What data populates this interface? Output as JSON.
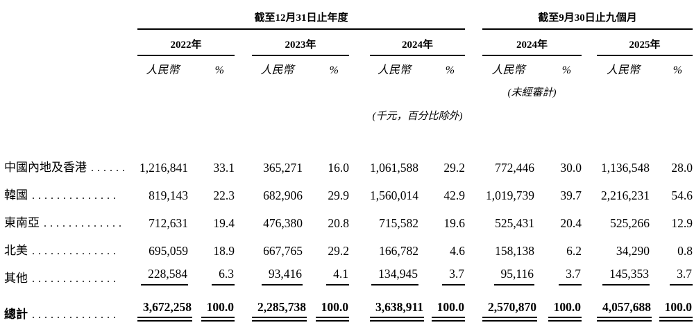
{
  "table": {
    "period_groups": [
      {
        "label": "截至12月31日止年度"
      },
      {
        "label": "截至9月30日止九個月"
      }
    ],
    "years": [
      "2022年",
      "2023年",
      "2024年",
      "2024年",
      "2025年"
    ],
    "sub_amount": "人民幣",
    "sub_percent": "%",
    "notes": {
      "unaudited": "(未經審計)",
      "units": "(千元，百分比除外)"
    },
    "rows": [
      {
        "label": "中國內地及香港",
        "leader": "......",
        "style": "plain",
        "values": [
          "1,216,841",
          "33.1",
          "365,271",
          "16.0",
          "1,061,588",
          "29.2",
          "772,446",
          "30.0",
          "1,136,548",
          "28.0"
        ]
      },
      {
        "label": "韓國",
        "leader": "..............",
        "style": "plain",
        "values": [
          "819,143",
          "22.3",
          "682,906",
          "29.9",
          "1,560,014",
          "42.9",
          "1,019,739",
          "39.7",
          "2,216,231",
          "54.6"
        ]
      },
      {
        "label": "東南亞",
        "leader": ".............",
        "style": "plain",
        "values": [
          "712,631",
          "19.4",
          "476,380",
          "20.8",
          "715,582",
          "19.6",
          "525,431",
          "20.4",
          "525,266",
          "12.9"
        ]
      },
      {
        "label": "北美",
        "leader": "..............",
        "style": "plain",
        "values": [
          "695,059",
          "18.9",
          "667,765",
          "29.2",
          "166,782",
          "4.6",
          "158,138",
          "6.2",
          "34,290",
          "0.8"
        ]
      },
      {
        "label": "其他",
        "leader": "..............",
        "style": "single",
        "values": [
          "228,584",
          "6.3",
          "93,416",
          "4.1",
          "134,945",
          "3.7",
          "95,116",
          "3.7",
          "145,353",
          "3.7"
        ]
      },
      {
        "label": "總計",
        "leader": "..............",
        "style": "total",
        "values": [
          "3,672,258",
          "100.0",
          "2,285,738",
          "100.0",
          "3,638,911",
          "100.0",
          "2,570,870",
          "100.0",
          "4,057,688",
          "100.0"
        ]
      }
    ]
  }
}
